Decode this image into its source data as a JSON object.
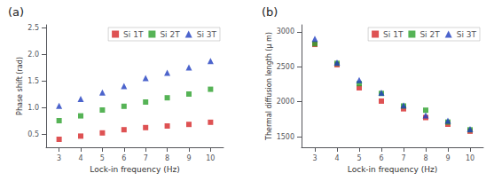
{
  "chart_data": [
    {
      "type": "scatter",
      "title": "(a)",
      "xlabel": "Lock-in frequency (Hz)",
      "ylabel": "Phase shift (rad)",
      "x": [
        3,
        4,
        5,
        6,
        7,
        8,
        9,
        10
      ],
      "series": [
        {
          "name": "Si 1T",
          "color": "#d62728",
          "marker": "square",
          "values": [
            0.4,
            0.46,
            0.52,
            0.58,
            0.62,
            0.65,
            0.68,
            0.72
          ]
        },
        {
          "name": "Si 2T",
          "color": "#2ca02c",
          "marker": "square",
          "values": [
            0.75,
            0.84,
            0.95,
            1.02,
            1.1,
            1.18,
            1.25,
            1.34
          ]
        },
        {
          "name": "Si 3T",
          "color": "#1f3dbf",
          "marker": "triangle",
          "values": [
            1.03,
            1.16,
            1.28,
            1.4,
            1.55,
            1.65,
            1.75,
            1.87
          ]
        }
      ],
      "xlim": [
        2.4,
        10.6
      ],
      "xticks": [
        3,
        4,
        5,
        6,
        7,
        8,
        9,
        10
      ],
      "ylim": [
        0.25,
        2.55
      ],
      "yticks": [
        0.5,
        {
          "value": 1.0,
          "label": "1.0"
        },
        1.5,
        {
          "value": 2.0,
          "label": "2.0"
        },
        2.5
      ],
      "legend": "upper right",
      "grid": false
    },
    {
      "type": "scatter",
      "title": "(b)",
      "xlabel": "Lock-in frequency (Hz)",
      "ylabel": "Thermal diffusion length (μ m)",
      "x": [
        3,
        4,
        5,
        6,
        7,
        8,
        9,
        10
      ],
      "series": [
        {
          "name": "Si 1T",
          "color": "#d62728",
          "marker": "square",
          "values": [
            2820,
            2530,
            2200,
            2010,
            1900,
            1775,
            1680,
            1580
          ]
        },
        {
          "name": "Si 2T",
          "color": "#2ca02c",
          "marker": "square",
          "values": [
            2830,
            2550,
            2260,
            2120,
            1940,
            1880,
            1710,
            1600
          ]
        },
        {
          "name": "Si 3T",
          "color": "#1f3dbf",
          "marker": "triangle",
          "values": [
            2900,
            2560,
            2310,
            2130,
            1950,
            1805,
            1730,
            1610
          ]
        }
      ],
      "xlim": [
        2.4,
        10.6
      ],
      "xticks": [
        3,
        4,
        5,
        6,
        7,
        8,
        9,
        10
      ],
      "ylim": [
        1350,
        3100
      ],
      "yticks": [
        1500,
        2000,
        2500,
        3000
      ],
      "legend": "upper right",
      "grid": false
    }
  ]
}
